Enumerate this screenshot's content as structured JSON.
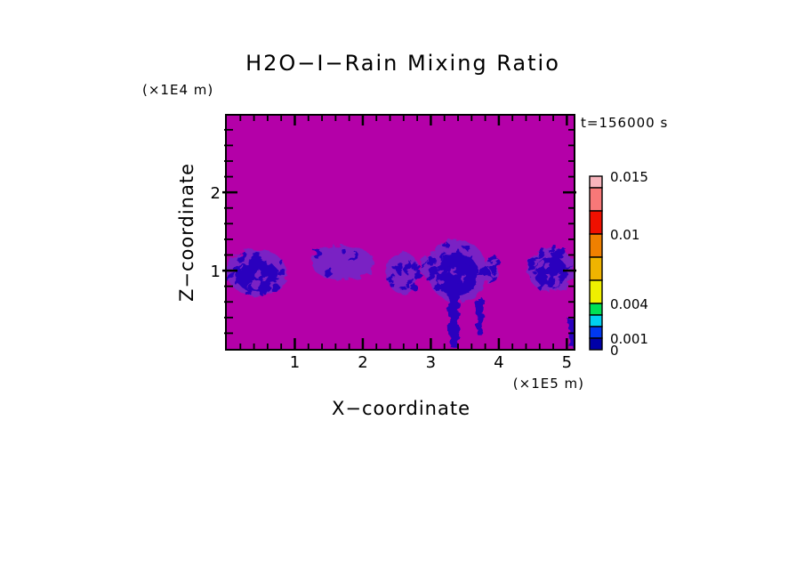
{
  "page": {
    "background": "#ffffff"
  },
  "chart_data": {
    "type": "heatmap",
    "title": "H2O−I−Rain Mixing Ratio",
    "annotation": "t=156000 s",
    "x_axis": {
      "label": "X−coordinate",
      "unit": "(×1E5 m)",
      "major_ticks": [
        1,
        2,
        3,
        4,
        5
      ],
      "minor_step": 0.2,
      "range": [
        0,
        5.1
      ]
    },
    "z_axis": {
      "label": "Z−coordinate",
      "unit": "(×1E4 m)",
      "major_ticks": [
        1,
        2
      ],
      "minor_step": 0.2,
      "range": [
        0,
        2.98
      ]
    },
    "field": "rain mixing ratio",
    "background_field_color": "#B400A8",
    "low_value_color": "#7A22C4",
    "trace_color": "#2A06BE",
    "colorbar": {
      "max": 0.015,
      "boxes": [
        {
          "from": 0,
          "to": 0.001,
          "color": "#0000A8"
        },
        {
          "from": 0.001,
          "to": 0.002,
          "color": "#0038F0"
        },
        {
          "from": 0.002,
          "to": 0.003,
          "color": "#00D0F0"
        },
        {
          "from": 0.003,
          "to": 0.004,
          "color": "#00E054"
        },
        {
          "from": 0.004,
          "to": 0.006,
          "color": "#F0F000"
        },
        {
          "from": 0.006,
          "to": 0.008,
          "color": "#F0B400"
        },
        {
          "from": 0.008,
          "to": 0.01,
          "color": "#F08000"
        },
        {
          "from": 0.01,
          "to": 0.012,
          "color": "#F01000"
        },
        {
          "from": 0.012,
          "to": 0.014,
          "color": "#F87878"
        },
        {
          "from": 0.014,
          "to": 0.015,
          "color": "#F8B4BC"
        }
      ],
      "labels": [
        {
          "text": "0.015",
          "value": 0.015
        },
        {
          "text": "0.01",
          "value": 0.01
        },
        {
          "text": "0.004",
          "value": 0.004
        },
        {
          "text": "0.001",
          "value": 0.001
        },
        {
          "text": "0",
          "value": 0
        }
      ]
    },
    "rain_clusters": [
      {
        "x": [
          0.0,
          0.88
        ],
        "z": [
          0.68,
          1.27
        ],
        "density": "dense",
        "shafts": []
      },
      {
        "x": [
          1.24,
          2.16
        ],
        "z": [
          0.88,
          1.32
        ],
        "density": "light",
        "shafts": []
      },
      {
        "x": [
          2.35,
          2.82
        ],
        "z": [
          0.7,
          1.25
        ],
        "density": "medium",
        "shafts": []
      },
      {
        "x": [
          2.86,
          2.99
        ],
        "z": [
          0.92,
          1.18
        ],
        "density": "faint",
        "shafts": []
      },
      {
        "x": [
          2.95,
          3.82
        ],
        "z": [
          0.6,
          1.4
        ],
        "density": "dense",
        "shafts": [
          {
            "x": 3.34,
            "w": 0.14,
            "z_top": 0.85,
            "z_bot": 0.02
          },
          {
            "x": 3.72,
            "w": 0.07,
            "z_top": 0.7,
            "z_bot": 0.18
          }
        ]
      },
      {
        "x": [
          3.8,
          3.99
        ],
        "z": [
          0.84,
          1.18
        ],
        "density": "medium",
        "shafts": []
      },
      {
        "x": [
          4.42,
          5.1
        ],
        "z": [
          0.73,
          1.3
        ],
        "density": "dense",
        "shafts": [
          {
            "x": 5.08,
            "w": 0.07,
            "z_top": 0.45,
            "z_bot": 0.02
          }
        ]
      }
    ]
  }
}
